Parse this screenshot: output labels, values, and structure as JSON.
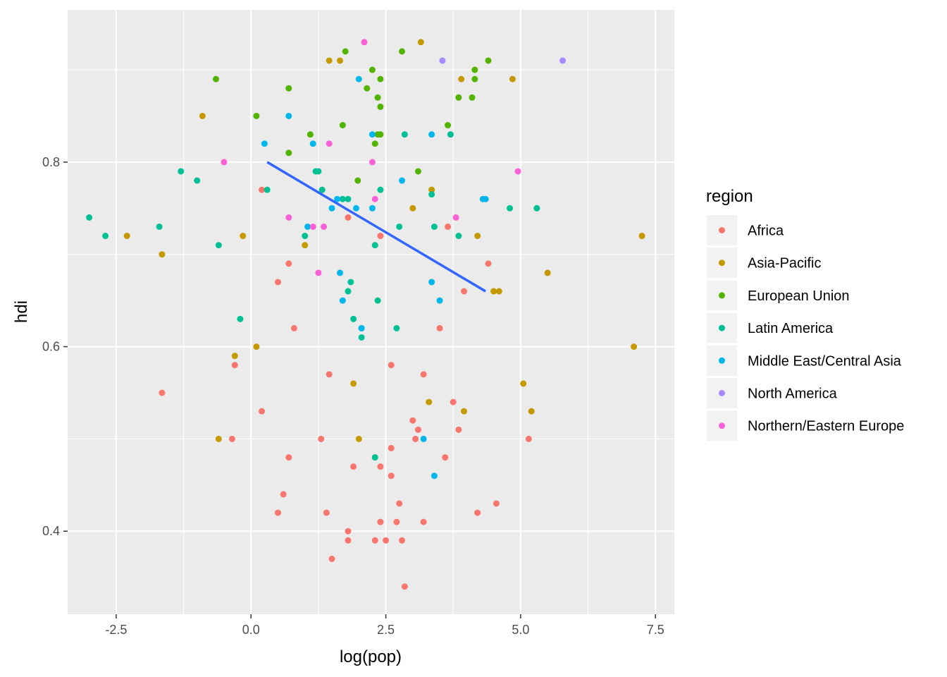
{
  "chart_data": {
    "type": "scatter",
    "xlabel": "log(pop)",
    "ylabel": "hdi",
    "xlim": [
      -3.4,
      7.85
    ],
    "ylim": [
      0.31,
      0.965
    ],
    "x_ticks": [
      "-2.5",
      "0.0",
      "2.5",
      "5.0",
      "7.5"
    ],
    "x_tick_values": [
      -2.5,
      0,
      2.5,
      5,
      7.5
    ],
    "y_ticks": [
      "0.4",
      "0.6",
      "0.8"
    ],
    "y_tick_values": [
      0.4,
      0.6,
      0.8
    ],
    "grid": true,
    "legend": {
      "title": "region",
      "position": "right"
    },
    "trend_line": {
      "color": "#3366FF",
      "x": [
        0.3,
        4.35
      ],
      "y": [
        0.8,
        0.66
      ]
    },
    "series": [
      {
        "name": "Africa",
        "color": "#F8766D",
        "x": [
          0.2,
          0.5,
          0.7,
          0.8,
          1.8,
          2.4,
          3.65,
          3.95,
          4.4,
          3.5,
          -1.65,
          -0.3,
          0.2,
          -0.35,
          1.3,
          1.45,
          2.6,
          3.2,
          0.7,
          1.9,
          3.0,
          3.1,
          3.05,
          3.85,
          3.6,
          3.75,
          5.15,
          2.4,
          2.6,
          2.6,
          2.75,
          0.5,
          0.6,
          1.4,
          1.8,
          1.8,
          2.3,
          2.4,
          2.7,
          3.2,
          4.2,
          4.55,
          1.5,
          2.5,
          2.8,
          2.85
        ],
        "y": [
          0.77,
          0.67,
          0.69,
          0.62,
          0.74,
          0.72,
          0.73,
          0.66,
          0.69,
          0.62,
          0.55,
          0.58,
          0.53,
          0.5,
          0.5,
          0.57,
          0.58,
          0.57,
          0.48,
          0.47,
          0.52,
          0.51,
          0.5,
          0.51,
          0.48,
          0.54,
          0.5,
          0.47,
          0.49,
          0.46,
          0.43,
          0.42,
          0.44,
          0.42,
          0.4,
          0.39,
          0.39,
          0.41,
          0.41,
          0.41,
          0.42,
          0.43,
          0.37,
          0.39,
          0.39,
          0.34
        ]
      },
      {
        "name": "Asia-Pacific",
        "color": "#C49A00",
        "x": [
          1.45,
          1.65,
          3.15,
          3.9,
          4.85,
          -0.9,
          -2.3,
          -1.65,
          -0.15,
          1.0,
          3.0,
          3.35,
          4.2,
          4.5,
          4.6,
          5.5,
          7.25,
          0.1,
          -0.3,
          1.9,
          2.0,
          3.3,
          3.95,
          5.05,
          5.2,
          7.1,
          -0.6
        ],
        "y": [
          0.91,
          0.91,
          0.93,
          0.89,
          0.89,
          0.85,
          0.72,
          0.7,
          0.72,
          0.71,
          0.75,
          0.77,
          0.72,
          0.66,
          0.66,
          0.68,
          0.72,
          0.6,
          0.59,
          0.56,
          0.5,
          0.54,
          0.53,
          0.56,
          0.53,
          0.6,
          0.5
        ]
      },
      {
        "name": "European Union",
        "color": "#53B400",
        "x": [
          -0.65,
          0.7,
          0.1,
          1.1,
          1.7,
          1.75,
          2.25,
          2.4,
          2.15,
          2.35,
          2.4,
          2.4,
          2.3,
          2.35,
          2.8,
          3.1,
          3.65,
          3.85,
          4.1,
          4.15,
          4.15,
          4.4,
          0.7,
          1.98
        ],
        "y": [
          0.89,
          0.88,
          0.85,
          0.83,
          0.84,
          0.92,
          0.9,
          0.89,
          0.88,
          0.87,
          0.86,
          0.83,
          0.82,
          0.83,
          0.92,
          0.79,
          0.84,
          0.87,
          0.87,
          0.89,
          0.9,
          0.91,
          0.81,
          0.78
        ]
      },
      {
        "name": "Latin America",
        "color": "#00C094",
        "x": [
          -3.0,
          -2.7,
          -1.7,
          -1.3,
          -1.0,
          -0.6,
          -0.2,
          0.3,
          1.2,
          1.25,
          1.32,
          1.0,
          1.8,
          1.85,
          1.9,
          2.05,
          2.3,
          2.35,
          2.4,
          2.7,
          2.75,
          2.85,
          3.4,
          3.35,
          3.7,
          3.85,
          4.8,
          5.3,
          1.8,
          1.7,
          2.3
        ],
        "y": [
          0.74,
          0.72,
          0.73,
          0.79,
          0.78,
          0.71,
          0.63,
          0.77,
          0.79,
          0.79,
          0.77,
          0.72,
          0.66,
          0.67,
          0.63,
          0.61,
          0.71,
          0.65,
          0.77,
          0.62,
          0.73,
          0.83,
          0.73,
          0.765,
          0.83,
          0.72,
          0.75,
          0.75,
          0.76,
          0.76,
          0.48
        ]
      },
      {
        "name": "Middle East/Central Asia",
        "color": "#00B6EB",
        "x": [
          0.25,
          0.7,
          1.05,
          1.15,
          1.5,
          1.6,
          1.65,
          1.7,
          1.95,
          2.0,
          2.05,
          2.25,
          2.25,
          2.8,
          3.35,
          3.35,
          3.5,
          4.3,
          4.35,
          3.2,
          3.4,
          2.05
        ],
        "y": [
          0.82,
          0.85,
          0.73,
          0.82,
          0.75,
          0.76,
          0.68,
          0.65,
          0.75,
          0.89,
          0.62,
          0.83,
          0.75,
          0.78,
          0.83,
          0.67,
          0.65,
          0.76,
          0.76,
          0.5,
          0.46,
          0.62
        ]
      },
      {
        "name": "North America",
        "color": "#A58AFF",
        "x": [
          3.55,
          5.78
        ],
        "y": [
          0.91,
          0.91
        ]
      },
      {
        "name": "Northern/Eastern Europe",
        "color": "#FB61D7",
        "x": [
          -0.5,
          0.7,
          1.15,
          1.25,
          1.35,
          1.45,
          2.1,
          2.25,
          2.3,
          3.8,
          4.95
        ],
        "y": [
          0.8,
          0.74,
          0.73,
          0.68,
          0.73,
          0.82,
          0.93,
          0.8,
          0.76,
          0.74,
          0.79
        ]
      }
    ]
  }
}
